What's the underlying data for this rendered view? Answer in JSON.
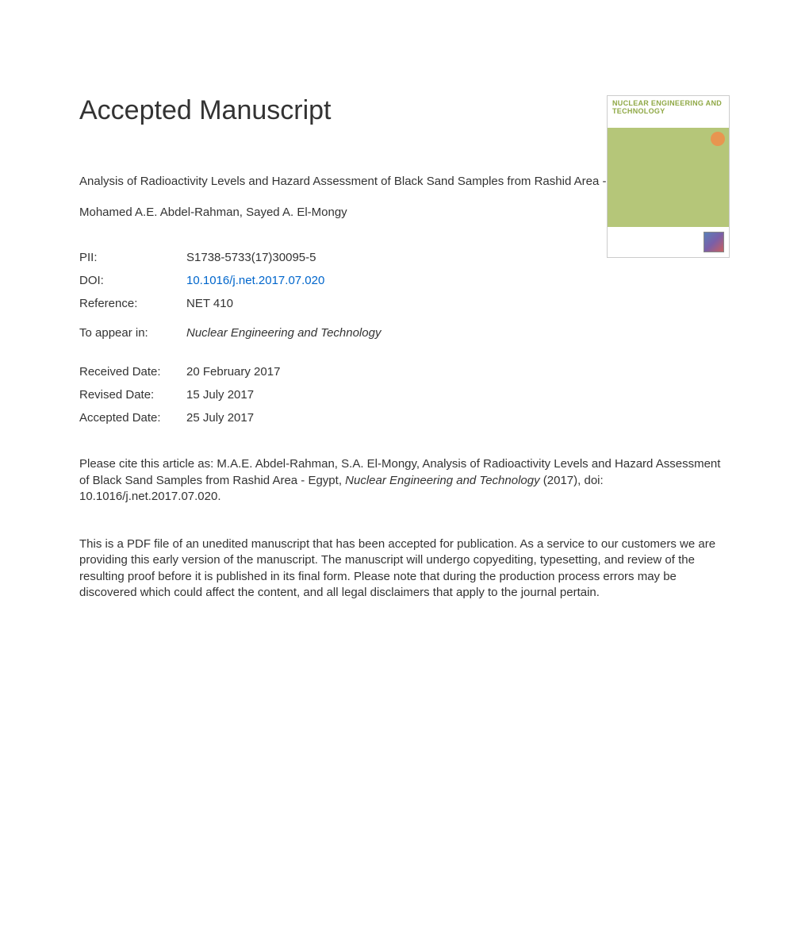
{
  "heading": "Accepted Manuscript",
  "journal_cover": {
    "title": "NUCLEAR ENGINEERING AND TECHNOLOGY",
    "header_bg": "#ffffff",
    "body_bg": "#b5c679",
    "title_color": "#8fa845",
    "badge_color": "#e89550"
  },
  "article": {
    "title": "Analysis of Radioactivity Levels and Hazard Assessment of Black Sand Samples from Rashid Area - Egypt",
    "authors": "Mohamed A.E. Abdel-Rahman, Sayed A. El-Mongy"
  },
  "meta": {
    "pii_label": "PII:",
    "pii_value": "S1738-5733(17)30095-5",
    "doi_label": "DOI:",
    "doi_value": "10.1016/j.net.2017.07.020",
    "reference_label": "Reference:",
    "reference_value": "NET 410",
    "appear_label": "To appear in:",
    "appear_value": "Nuclear Engineering and Technology"
  },
  "dates": {
    "received_label": "Received Date:",
    "received_value": "20 February 2017",
    "revised_label": "Revised Date:",
    "revised_value": "15 July 2017",
    "accepted_label": "Accepted Date:",
    "accepted_value": "25 July 2017"
  },
  "citation": {
    "prefix": "Please cite this article as: M.A.E. Abdel-Rahman, S.A. El-Mongy, Analysis of Radioactivity Levels and Hazard Assessment of Black Sand Samples from Rashid Area - Egypt, ",
    "journal": "Nuclear Engineering and Technology",
    "suffix": " (2017), doi: 10.1016/j.net.2017.07.020."
  },
  "disclaimer": "This is a PDF file of an unedited manuscript that has been accepted for publication. As a service to our customers we are providing this early version of the manuscript. The manuscript will undergo copyediting, typesetting, and review of the resulting proof before it is published in its final form. Please note that during the production process errors may be discovered which could affect the content, and all legal disclaimers that apply to the journal pertain."
}
